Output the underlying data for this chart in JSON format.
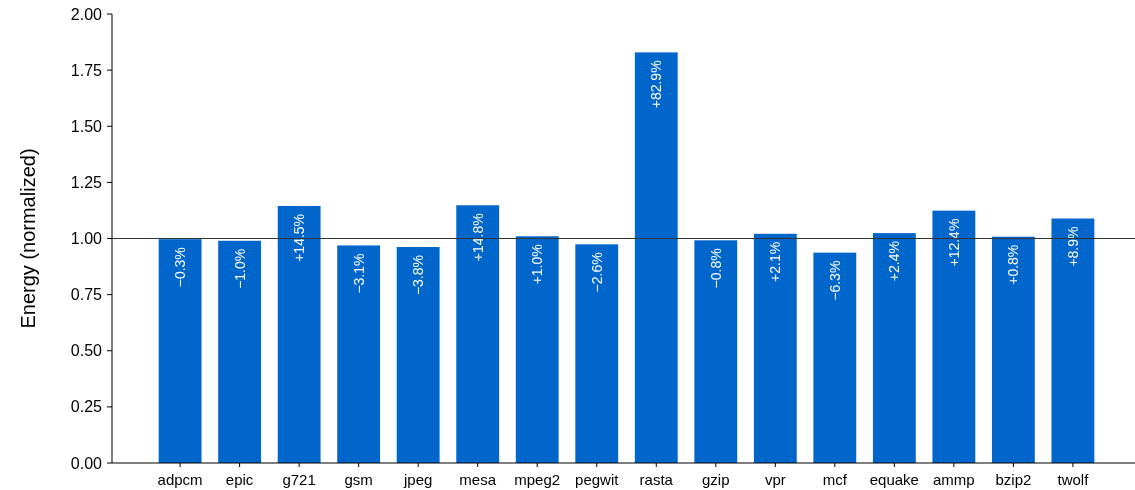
{
  "chart_data": {
    "type": "bar",
    "ylabel": "Energy (normalized)",
    "categories": [
      "adpcm",
      "epic",
      "g721",
      "gsm",
      "jpeg",
      "mesa",
      "mpeg2",
      "pegwit",
      "rasta",
      "gzip",
      "vpr",
      "mcf",
      "equake",
      "ammp",
      "bzip2",
      "twolf"
    ],
    "values": [
      0.997,
      0.99,
      1.145,
      0.969,
      0.962,
      1.148,
      1.01,
      0.974,
      1.829,
      0.992,
      1.021,
      0.937,
      1.024,
      1.124,
      1.008,
      1.089
    ],
    "annotations": [
      {
        "text": "−0.3%",
        "x": "adpcm",
        "y": 0.997
      },
      {
        "text": "−1.0%",
        "x": "epic",
        "y": 0.99
      },
      {
        "text": "+14.5%",
        "x": "g721",
        "y": 1.145
      },
      {
        "text": "−3.1%",
        "x": "gsm",
        "y": 0.969
      },
      {
        "text": "−3.8%",
        "x": "jpeg",
        "y": 0.962
      },
      {
        "text": "+14.8%",
        "x": "mesa",
        "y": 1.148
      },
      {
        "text": "+1.0%",
        "x": "mpeg2",
        "y": 1.01
      },
      {
        "text": "−2.6%",
        "x": "pegwit",
        "y": 0.974
      },
      {
        "text": "+82.9%",
        "x": "rasta",
        "y": 1.829
      },
      {
        "text": "−0.8%",
        "x": "gzip",
        "y": 0.992
      },
      {
        "text": "+2.1%",
        "x": "vpr",
        "y": 1.021
      },
      {
        "text": "−6.3%",
        "x": "mcf",
        "y": 0.937
      },
      {
        "text": "+2.4%",
        "x": "equake",
        "y": 1.024
      },
      {
        "text": "+12.4%",
        "x": "ammp",
        "y": 1.124
      },
      {
        "text": "+0.8%",
        "x": "bzip2",
        "y": 1.008
      },
      {
        "text": "+8.9%",
        "x": "twolf",
        "y": 1.089
      }
    ],
    "color": "#0066cc",
    "ylim": [
      0,
      2
    ],
    "yticks": [
      {
        "value": 0,
        "label": "0.00"
      },
      {
        "value": 0.25,
        "label": "0.25"
      },
      {
        "value": 0.5,
        "label": "0.50"
      },
      {
        "value": 0.75,
        "label": "0.75"
      },
      {
        "value": 1,
        "label": "1.00"
      },
      {
        "value": 1.25,
        "label": "1.25"
      },
      {
        "value": 1.5,
        "label": "1.50"
      },
      {
        "value": 1.75,
        "label": "1.75"
      },
      {
        "value": 2,
        "label": "2.00"
      }
    ],
    "ref_lines": [
      {
        "axis": "y",
        "value": 1,
        "color": "#333333"
      }
    ]
  }
}
